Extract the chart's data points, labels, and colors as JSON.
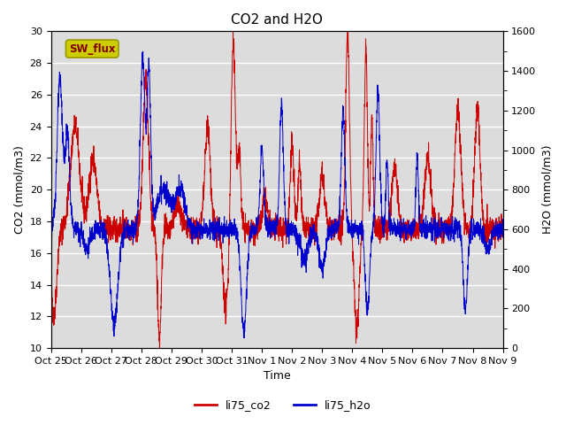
{
  "title": "CO2 and H2O",
  "ylabel_left": "CO2 (mmol/m3)",
  "ylabel_right": "H2O (mmol/m3)",
  "xlabel": "Time",
  "ylim_left": [
    10,
    30
  ],
  "ylim_right": [
    0,
    1600
  ],
  "plot_bg_color": "#dcdcdc",
  "fig_bg_color": "#ffffff",
  "co2_color": "#cc0000",
  "h2o_color": "#0000cc",
  "co2_label": "li75_co2",
  "h2o_label": "li75_h2o",
  "sw_flux_box_color": "#cccc00",
  "sw_flux_text_color": "#800000",
  "xtick_labels": [
    "Oct 25",
    "Oct 26",
    "Oct 27",
    "Oct 28",
    "Oct 29",
    "Oct 30",
    "Oct 31",
    "Nov 1",
    "Nov 2",
    "Nov 3",
    "Nov 4",
    "Nov 5",
    "Nov 6",
    "Nov 7",
    "Nov 8",
    "Nov 9"
  ],
  "yticks_left": [
    10,
    12,
    14,
    16,
    18,
    20,
    22,
    24,
    26,
    28,
    30
  ],
  "yticks_right": [
    0,
    200,
    400,
    600,
    800,
    1000,
    1200,
    1400,
    1600
  ],
  "grid_color": "#ffffff",
  "seed": 42
}
